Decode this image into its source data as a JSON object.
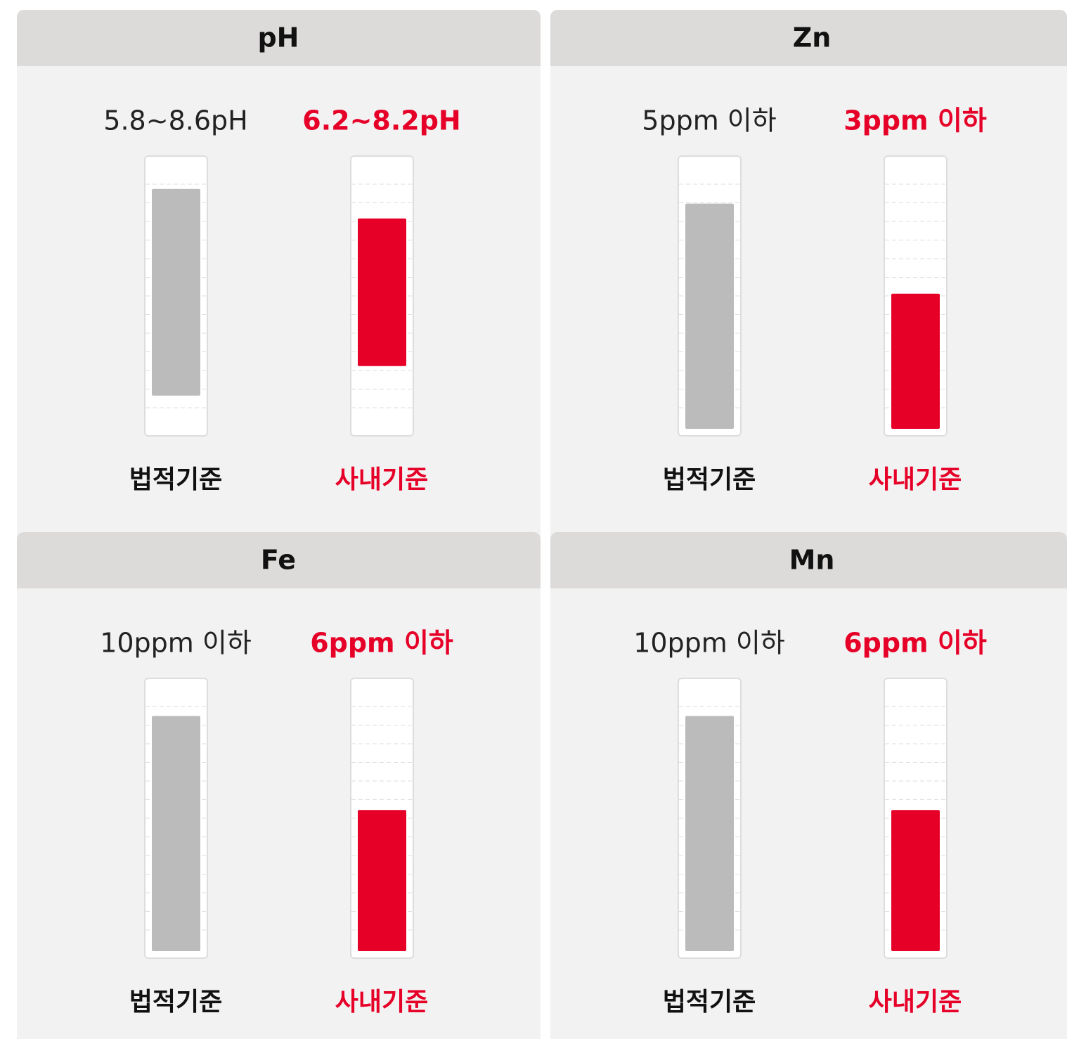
{
  "charts": [
    {
      "title": "pH",
      "ylim": [
        5.35,
        8.95
      ],
      "bars": [
        {
          "label": "법적기준",
          "text": "5.8~8.6pH",
          "min": 5.8,
          "max": 8.6,
          "color": "#bbbbbb"
        },
        {
          "label": "사내기준",
          "text": "6.2~8.2pH",
          "min": 6.2,
          "max": 8.2,
          "color": "#e60028"
        }
      ]
    },
    {
      "title": "Zn",
      "ylim": [
        0,
        5.9
      ],
      "bars": [
        {
          "label": "법적기준",
          "text": "5ppm 이하",
          "max": 5,
          "color": "#bbbbbb"
        },
        {
          "label": "사내기준",
          "text": "3ppm 이하",
          "max": 3,
          "color": "#e60028"
        }
      ]
    },
    {
      "title": "Fe",
      "ylim": [
        0,
        11.3
      ],
      "bars": [
        {
          "label": "법적기준",
          "text": "10ppm 이하",
          "max": 10,
          "color": "#bbbbbb"
        },
        {
          "label": "사내기준",
          "text": "6ppm 이하",
          "max": 6,
          "color": "#e60028"
        }
      ]
    },
    {
      "title": "Mn",
      "ylim": [
        0,
        11.3
      ],
      "bars": [
        {
          "label": "법적기준",
          "text": "10ppm 이하",
          "max": 10,
          "color": "#bbbbbb"
        },
        {
          "label": "사내기준",
          "text": "6ppm 이하",
          "max": 6,
          "color": "#e60028"
        }
      ]
    }
  ]
}
